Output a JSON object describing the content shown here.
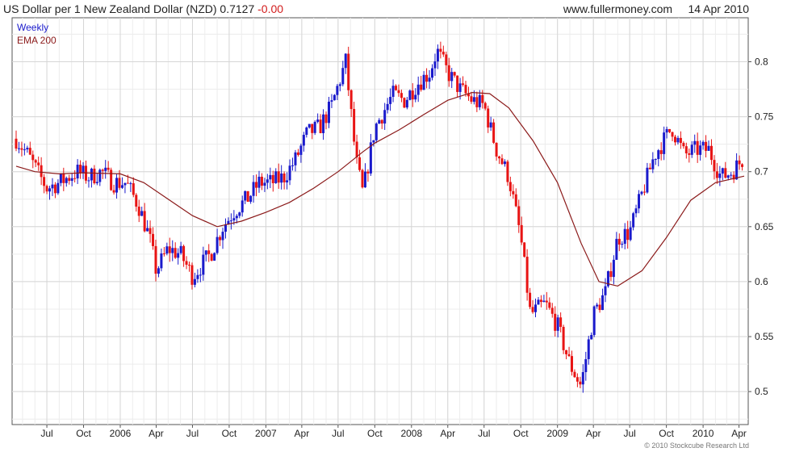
{
  "header": {
    "title": "US Dollar per 1 New Zealand Dollar (NZD)",
    "last": "0.7127",
    "change": "-0.00",
    "site": "www.fullermoney.com",
    "date": "14 Apr 2010"
  },
  "copyright": "© 2010 Stockcube Research Ltd",
  "colors": {
    "up": "#1a1acc",
    "down": "#e81414",
    "ema": "#8b1a1a",
    "grid": "#d6d6d6",
    "legend_weekly": "#1a1acc",
    "legend_ema": "#8b1a1a"
  },
  "chart_data": {
    "type": "candlestick",
    "interval": "weekly",
    "legend": [
      "Weekly",
      "EMA 200"
    ],
    "legend_position": "top-left",
    "grid": true,
    "y_axis_side": "right",
    "ylim": [
      0.47,
      0.84
    ],
    "y_ticks": [
      "0.5",
      "0.55",
      "0.6",
      "0.65",
      "0.7",
      "0.75",
      "0.8"
    ],
    "x_ticks": [
      "Jul",
      "Oct",
      "2006",
      "Apr",
      "Jul",
      "Oct",
      "2007",
      "Apr",
      "Jul",
      "Oct",
      "2008",
      "Apr",
      "Jul",
      "Oct",
      "2009",
      "Apr",
      "Jul",
      "Oct",
      "2010",
      "Apr"
    ],
    "x_tick_dates": [
      "2005-07-01",
      "2005-10-01",
      "2006-01-01",
      "2006-04-01",
      "2006-07-01",
      "2006-10-01",
      "2007-01-01",
      "2007-04-01",
      "2007-07-01",
      "2007-10-01",
      "2008-01-01",
      "2008-04-01",
      "2008-07-01",
      "2008-10-01",
      "2009-01-01",
      "2009-04-01",
      "2009-07-01",
      "2009-10-01",
      "2010-01-01",
      "2010-04-01"
    ],
    "date_range": [
      "2005-04-15",
      "2010-04-14"
    ],
    "close_path": [
      [
        "2005-04-15",
        0.73
      ],
      [
        "2005-05-15",
        0.715
      ],
      [
        "2005-06-15",
        0.695
      ],
      [
        "2005-07-01",
        0.685
      ],
      [
        "2005-08-01",
        0.69
      ],
      [
        "2005-09-15",
        0.7
      ],
      [
        "2005-10-15",
        0.695
      ],
      [
        "2005-11-15",
        0.7
      ],
      [
        "2005-12-15",
        0.69
      ],
      [
        "2006-01-15",
        0.69
      ],
      [
        "2006-02-15",
        0.67
      ],
      [
        "2006-03-15",
        0.64
      ],
      [
        "2006-04-01",
        0.61
      ],
      [
        "2006-05-01",
        0.63
      ],
      [
        "2006-06-01",
        0.625
      ],
      [
        "2006-07-01",
        0.605
      ],
      [
        "2006-08-15",
        0.625
      ],
      [
        "2006-09-15",
        0.65
      ],
      [
        "2006-10-15",
        0.665
      ],
      [
        "2006-11-15",
        0.675
      ],
      [
        "2006-12-15",
        0.69
      ],
      [
        "2007-01-15",
        0.69
      ],
      [
        "2007-02-15",
        0.695
      ],
      [
        "2007-03-15",
        0.71
      ],
      [
        "2007-04-15",
        0.735
      ],
      [
        "2007-05-15",
        0.74
      ],
      [
        "2007-06-15",
        0.76
      ],
      [
        "2007-07-20",
        0.8
      ],
      [
        "2007-08-15",
        0.71
      ],
      [
        "2007-09-01",
        0.68
      ],
      [
        "2007-10-01",
        0.74
      ],
      [
        "2007-11-15",
        0.77
      ],
      [
        "2007-12-15",
        0.765
      ],
      [
        "2008-01-15",
        0.78
      ],
      [
        "2008-02-15",
        0.79
      ],
      [
        "2008-03-05",
        0.81
      ],
      [
        "2008-04-01",
        0.79
      ],
      [
        "2008-05-01",
        0.775
      ],
      [
        "2008-06-01",
        0.765
      ],
      [
        "2008-07-01",
        0.76
      ],
      [
        "2008-08-01",
        0.72
      ],
      [
        "2008-09-01",
        0.695
      ],
      [
        "2008-10-01",
        0.64
      ],
      [
        "2008-10-25",
        0.57
      ],
      [
        "2008-12-01",
        0.58
      ],
      [
        "2009-01-01",
        0.56
      ],
      [
        "2009-02-01",
        0.525
      ],
      [
        "2009-03-01",
        0.505
      ],
      [
        "2009-04-01",
        0.57
      ],
      [
        "2009-05-01",
        0.59
      ],
      [
        "2009-06-01",
        0.64
      ],
      [
        "2009-07-01",
        0.645
      ],
      [
        "2009-08-01",
        0.68
      ],
      [
        "2009-09-01",
        0.715
      ],
      [
        "2009-10-15",
        0.74
      ],
      [
        "2009-11-15",
        0.715
      ],
      [
        "2009-12-15",
        0.72
      ],
      [
        "2010-01-15",
        0.72
      ],
      [
        "2010-02-15",
        0.695
      ],
      [
        "2010-03-15",
        0.7
      ],
      [
        "2010-04-14",
        0.713
      ]
    ],
    "series": [
      {
        "name": "EMA 200",
        "points": [
          [
            "2005-04-15",
            0.705
          ],
          [
            "2005-06-01",
            0.7
          ],
          [
            "2005-08-01",
            0.698
          ],
          [
            "2005-10-01",
            0.699
          ],
          [
            "2006-01-01",
            0.698
          ],
          [
            "2006-03-01",
            0.69
          ],
          [
            "2006-05-01",
            0.675
          ],
          [
            "2006-07-01",
            0.66
          ],
          [
            "2006-09-01",
            0.65
          ],
          [
            "2006-11-01",
            0.655
          ],
          [
            "2007-01-01",
            0.663
          ],
          [
            "2007-03-01",
            0.672
          ],
          [
            "2007-05-01",
            0.685
          ],
          [
            "2007-07-01",
            0.7
          ],
          [
            "2007-09-01",
            0.718
          ],
          [
            "2007-10-01",
            0.726
          ],
          [
            "2007-12-01",
            0.738
          ],
          [
            "2008-02-01",
            0.752
          ],
          [
            "2008-04-01",
            0.765
          ],
          [
            "2008-06-01",
            0.772
          ],
          [
            "2008-07-15",
            0.771
          ],
          [
            "2008-09-01",
            0.758
          ],
          [
            "2008-11-01",
            0.728
          ],
          [
            "2009-01-01",
            0.69
          ],
          [
            "2009-03-01",
            0.635
          ],
          [
            "2009-04-15",
            0.6
          ],
          [
            "2009-06-01",
            0.596
          ],
          [
            "2009-08-01",
            0.61
          ],
          [
            "2009-10-01",
            0.64
          ],
          [
            "2009-12-01",
            0.674
          ],
          [
            "2010-02-01",
            0.69
          ],
          [
            "2010-04-14",
            0.696
          ]
        ]
      }
    ]
  }
}
